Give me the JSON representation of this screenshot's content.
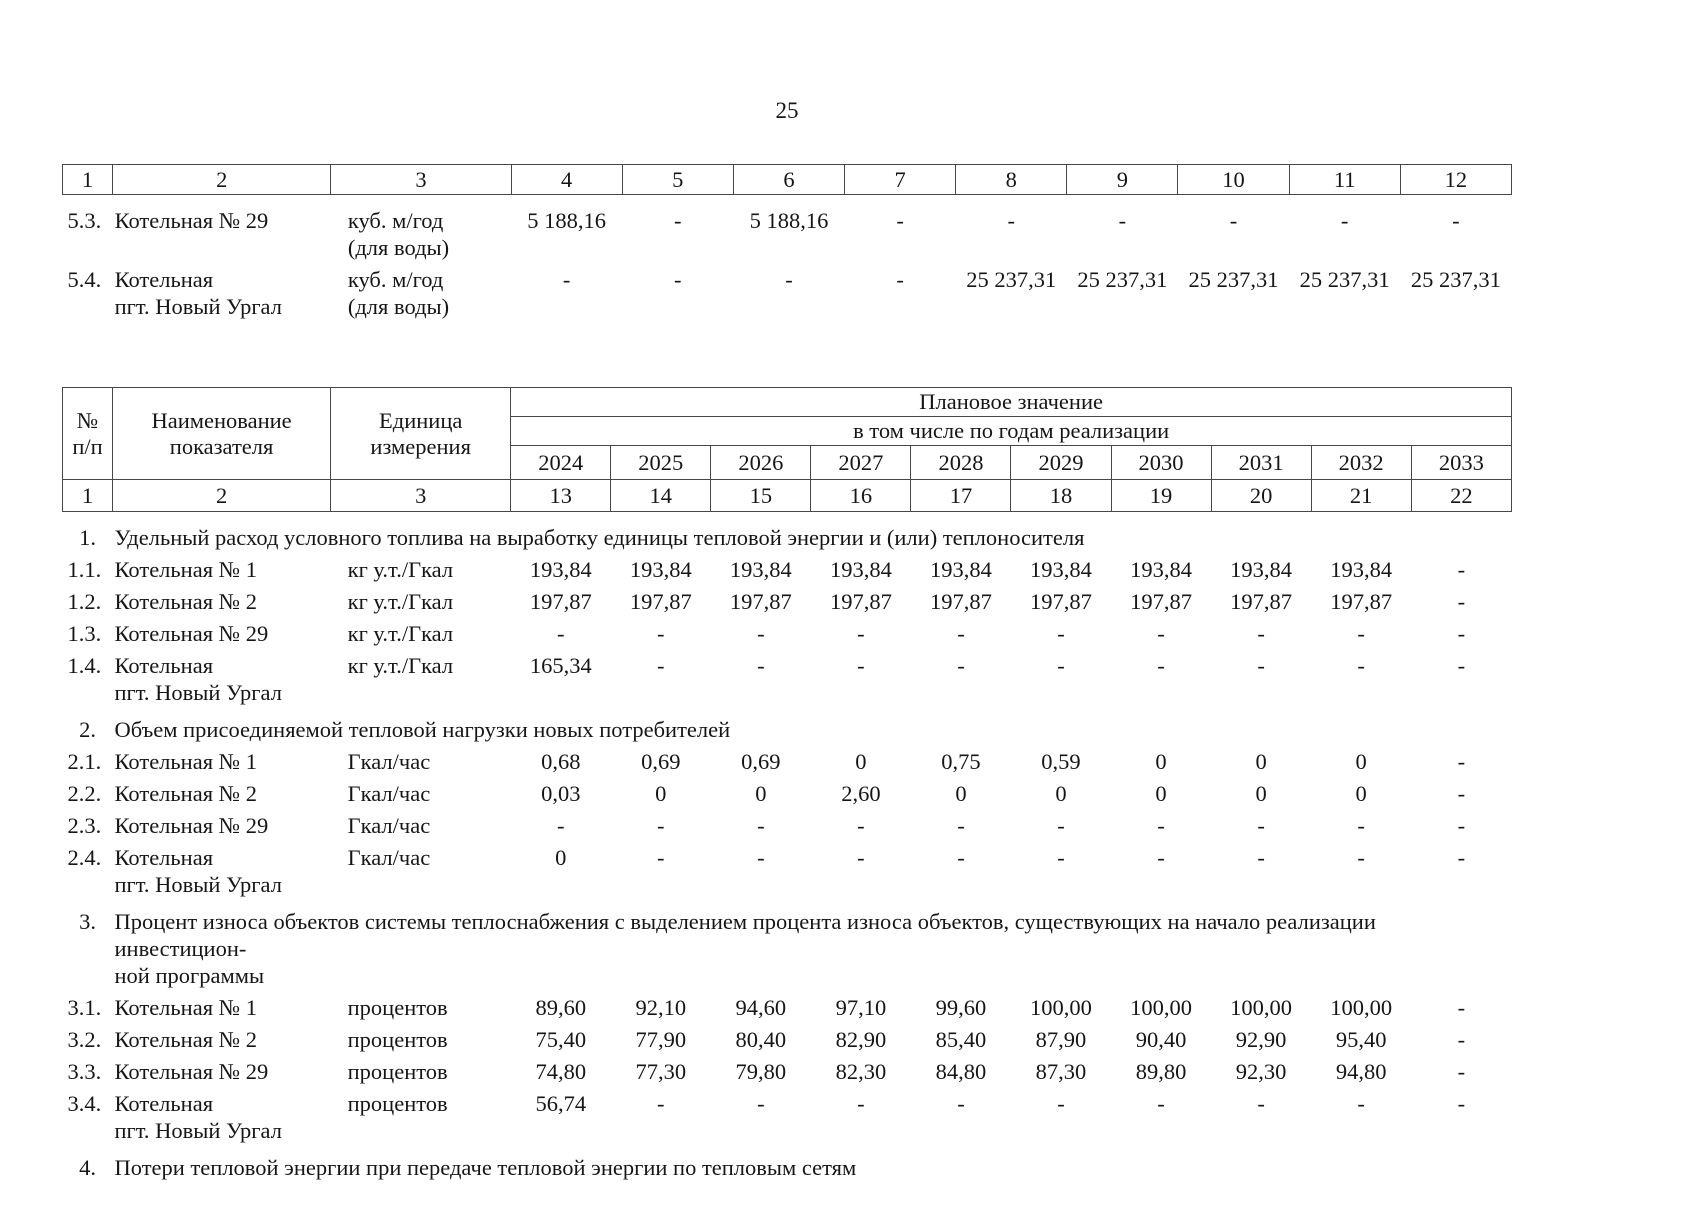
{
  "page": {
    "number": "25"
  },
  "table1": {
    "header_cols": [
      "1",
      "2",
      "3",
      "4",
      "5",
      "6",
      "7",
      "8",
      "9",
      "10",
      "11",
      "12"
    ],
    "rows": [
      {
        "num": "5.3.",
        "name": "Котельная № 29",
        "unit": "куб. м/год\n(для воды)",
        "values": [
          "5 188,16",
          "-",
          "5 188,16",
          "-",
          "-",
          "-",
          "-",
          "-",
          "-"
        ]
      },
      {
        "num": "5.4.",
        "name": "Котельная\nпгт. Новый Ургал",
        "unit": "куб. м/год\n(для воды)",
        "values": [
          "-",
          "-",
          "-",
          "-",
          "25 237,31",
          "25 237,31",
          "25 237,31",
          "25 237,31",
          "25 237,31"
        ]
      }
    ]
  },
  "table2": {
    "header": {
      "col_num": "№\nп/п",
      "col_name": "Наименование\nпоказателя",
      "col_unit": "Единица\nизмерения",
      "plan_label": "Плановое значение",
      "years_label": "в том числе по годам реализации",
      "years": [
        "2024",
        "2025",
        "2026",
        "2027",
        "2028",
        "2029",
        "2030",
        "2031",
        "2032",
        "2033"
      ],
      "col_numbers": [
        "1",
        "2",
        "3",
        "13",
        "14",
        "15",
        "16",
        "17",
        "18",
        "19",
        "20",
        "21",
        "22"
      ]
    },
    "sections": [
      {
        "num": "1.",
        "title": "Удельный расход условного топлива на выработку единицы тепловой энергии и (или) теплоносителя",
        "rows": [
          {
            "num": "1.1.",
            "name": "Котельная № 1",
            "unit": "кг у.т./Гкал",
            "values": [
              "193,84",
              "193,84",
              "193,84",
              "193,84",
              "193,84",
              "193,84",
              "193,84",
              "193,84",
              "193,84",
              "-"
            ]
          },
          {
            "num": "1.2.",
            "name": "Котельная № 2",
            "unit": "кг у.т./Гкал",
            "values": [
              "197,87",
              "197,87",
              "197,87",
              "197,87",
              "197,87",
              "197,87",
              "197,87",
              "197,87",
              "197,87",
              "-"
            ]
          },
          {
            "num": "1.3.",
            "name": "Котельная № 29",
            "unit": "кг у.т./Гкал",
            "values": [
              "-",
              "-",
              "-",
              "-",
              "-",
              "-",
              "-",
              "-",
              "-",
              "-"
            ]
          },
          {
            "num": "1.4.",
            "name": "Котельная\nпгт. Новый Ургал",
            "unit": "кг у.т./Гкал",
            "values": [
              "165,34",
              "-",
              "-",
              "-",
              "-",
              "-",
              "-",
              "-",
              "-",
              "-"
            ]
          }
        ]
      },
      {
        "num": "2.",
        "title": "Объем присоединяемой тепловой нагрузки новых потребителей",
        "rows": [
          {
            "num": "2.1.",
            "name": "Котельная № 1",
            "unit": "Гкал/час",
            "values": [
              "0,68",
              "0,69",
              "0,69",
              "0",
              "0,75",
              "0,59",
              "0",
              "0",
              "0",
              "-"
            ]
          },
          {
            "num": "2.2.",
            "name": "Котельная № 2",
            "unit": "Гкал/час",
            "values": [
              "0,03",
              "0",
              "0",
              "2,60",
              "0",
              "0",
              "0",
              "0",
              "0",
              "-"
            ]
          },
          {
            "num": "2.3.",
            "name": "Котельная № 29",
            "unit": "Гкал/час",
            "values": [
              "-",
              "-",
              "-",
              "-",
              "-",
              "-",
              "-",
              "-",
              "-",
              "-"
            ]
          },
          {
            "num": "2.4.",
            "name": "Котельная\nпгт. Новый Ургал",
            "unit": "Гкал/час",
            "values": [
              "0",
              "-",
              "-",
              "-",
              "-",
              "-",
              "-",
              "-",
              "-",
              "-"
            ]
          }
        ]
      },
      {
        "num": "3.",
        "title": "Процент износа объектов системы теплоснабжения с выделением процента износа объектов, существующих на начало реализации инвестицион-\nной программы",
        "rows": [
          {
            "num": "3.1.",
            "name": "Котельная № 1",
            "unit": "процентов",
            "values": [
              "89,60",
              "92,10",
              "94,60",
              "97,10",
              "99,60",
              "100,00",
              "100,00",
              "100,00",
              "100,00",
              "-"
            ]
          },
          {
            "num": "3.2.",
            "name": "Котельная № 2",
            "unit": "процентов",
            "values": [
              "75,40",
              "77,90",
              "80,40",
              "82,90",
              "85,40",
              "87,90",
              "90,40",
              "92,90",
              "95,40",
              "-"
            ]
          },
          {
            "num": "3.3.",
            "name": "Котельная № 29",
            "unit": "процентов",
            "values": [
              "74,80",
              "77,30",
              "79,80",
              "82,30",
              "84,80",
              "87,30",
              "89,80",
              "92,30",
              "94,80",
              "-"
            ]
          },
          {
            "num": "3.4.",
            "name": "Котельная\nпгт. Новый Ургал",
            "unit": "процентов",
            "values": [
              "56,74",
              "-",
              "-",
              "-",
              "-",
              "-",
              "-",
              "-",
              "-",
              "-"
            ]
          }
        ]
      },
      {
        "num": "4.",
        "title": "Потери тепловой энергии при передаче тепловой энергии по тепловым сетям",
        "rows": []
      }
    ]
  }
}
